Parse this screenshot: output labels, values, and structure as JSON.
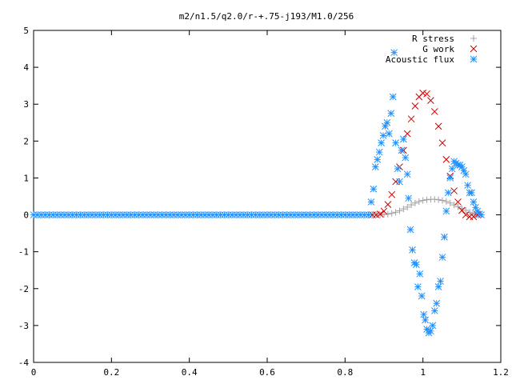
{
  "chart_data": {
    "type": "scatter",
    "title": "m2/n1.5/q2.0/r-+.75-j193/M1.0/256",
    "xlabel": "",
    "ylabel": "",
    "xlim": [
      0,
      1.2
    ],
    "ylim": [
      -4,
      5
    ],
    "xticks": [
      0,
      0.2,
      0.4,
      0.6,
      0.8,
      1,
      1.2
    ],
    "yticks": [
      -4,
      -3,
      -2,
      -1,
      0,
      1,
      2,
      3,
      4,
      5
    ],
    "xtick_labels": [
      "0",
      "0.2",
      "0.4",
      "0.6",
      "0.8",
      "1",
      "1.2"
    ],
    "ytick_labels": [
      "-4",
      "-3",
      "-2",
      "-1",
      "0",
      "1",
      "2",
      "3",
      "4",
      "5"
    ],
    "grid": false,
    "legend_position": "top-right",
    "series": [
      {
        "name": "R stress",
        "marker": "plus",
        "color": "#a0a0a0",
        "points": [
          [
            0.87,
            0.0
          ],
          [
            0.88,
            0.0
          ],
          [
            0.89,
            0.0
          ],
          [
            0.9,
            0.01
          ],
          [
            0.91,
            0.02
          ],
          [
            0.92,
            0.04
          ],
          [
            0.93,
            0.07
          ],
          [
            0.94,
            0.11
          ],
          [
            0.95,
            0.16
          ],
          [
            0.96,
            0.21
          ],
          [
            0.97,
            0.27
          ],
          [
            0.98,
            0.32
          ],
          [
            0.99,
            0.36
          ],
          [
            1.0,
            0.39
          ],
          [
            1.01,
            0.41
          ],
          [
            1.02,
            0.42
          ],
          [
            1.03,
            0.42
          ],
          [
            1.04,
            0.41
          ],
          [
            1.05,
            0.39
          ],
          [
            1.06,
            0.36
          ],
          [
            1.07,
            0.32
          ],
          [
            1.08,
            0.27
          ],
          [
            1.09,
            0.22
          ],
          [
            1.1,
            0.17
          ],
          [
            1.11,
            0.12
          ],
          [
            1.12,
            0.07
          ],
          [
            1.13,
            0.03
          ],
          [
            1.14,
            0.01
          ]
        ]
      },
      {
        "name": "G work",
        "marker": "cross",
        "color": "#cc0000",
        "points": [
          [
            0.87,
            0.0
          ],
          [
            0.88,
            0.0
          ],
          [
            0.89,
            0.02
          ],
          [
            0.9,
            0.1
          ],
          [
            0.91,
            0.28
          ],
          [
            0.92,
            0.55
          ],
          [
            0.93,
            0.9
          ],
          [
            0.94,
            1.3
          ],
          [
            0.95,
            1.75
          ],
          [
            0.96,
            2.2
          ],
          [
            0.97,
            2.6
          ],
          [
            0.98,
            2.95
          ],
          [
            0.99,
            3.2
          ],
          [
            1.0,
            3.3
          ],
          [
            1.01,
            3.28
          ],
          [
            1.02,
            3.1
          ],
          [
            1.03,
            2.8
          ],
          [
            1.04,
            2.4
          ],
          [
            1.05,
            1.95
          ],
          [
            1.06,
            1.5
          ],
          [
            1.07,
            1.05
          ],
          [
            1.08,
            0.65
          ],
          [
            1.09,
            0.35
          ],
          [
            1.1,
            0.12
          ],
          [
            1.11,
            0.0
          ],
          [
            1.12,
            -0.05
          ],
          [
            1.13,
            -0.05
          ],
          [
            1.14,
            0.0
          ]
        ]
      },
      {
        "name": "Acoustic flux",
        "marker": "star",
        "color": "#1e90ff",
        "points": [
          [
            0.0,
            0.0
          ],
          [
            0.01,
            0.0
          ],
          [
            0.02,
            0.0
          ],
          [
            0.03,
            0.0
          ],
          [
            0.04,
            0.0
          ],
          [
            0.05,
            0.0
          ],
          [
            0.06,
            0.0
          ],
          [
            0.07,
            0.0
          ],
          [
            0.08,
            0.0
          ],
          [
            0.09,
            0.0
          ],
          [
            0.1,
            0.0
          ],
          [
            0.11,
            0.0
          ],
          [
            0.12,
            0.0
          ],
          [
            0.13,
            0.0
          ],
          [
            0.14,
            0.0
          ],
          [
            0.15,
            0.0
          ],
          [
            0.16,
            0.0
          ],
          [
            0.17,
            0.0
          ],
          [
            0.18,
            0.0
          ],
          [
            0.19,
            0.0
          ],
          [
            0.2,
            0.0
          ],
          [
            0.21,
            0.0
          ],
          [
            0.22,
            0.0
          ],
          [
            0.23,
            0.0
          ],
          [
            0.24,
            0.0
          ],
          [
            0.25,
            0.0
          ],
          [
            0.26,
            0.0
          ],
          [
            0.27,
            0.0
          ],
          [
            0.28,
            0.0
          ],
          [
            0.29,
            0.0
          ],
          [
            0.3,
            0.0
          ],
          [
            0.31,
            0.0
          ],
          [
            0.32,
            0.0
          ],
          [
            0.33,
            0.0
          ],
          [
            0.34,
            0.0
          ],
          [
            0.35,
            0.0
          ],
          [
            0.36,
            0.0
          ],
          [
            0.37,
            0.0
          ],
          [
            0.38,
            0.0
          ],
          [
            0.39,
            0.0
          ],
          [
            0.4,
            0.0
          ],
          [
            0.41,
            0.0
          ],
          [
            0.42,
            0.0
          ],
          [
            0.43,
            0.0
          ],
          [
            0.44,
            0.0
          ],
          [
            0.45,
            0.0
          ],
          [
            0.46,
            0.0
          ],
          [
            0.47,
            0.0
          ],
          [
            0.48,
            0.0
          ],
          [
            0.49,
            0.0
          ],
          [
            0.5,
            0.0
          ],
          [
            0.51,
            0.0
          ],
          [
            0.52,
            0.0
          ],
          [
            0.53,
            0.0
          ],
          [
            0.54,
            0.0
          ],
          [
            0.55,
            0.0
          ],
          [
            0.56,
            0.0
          ],
          [
            0.57,
            0.0
          ],
          [
            0.58,
            0.0
          ],
          [
            0.59,
            0.0
          ],
          [
            0.6,
            0.0
          ],
          [
            0.61,
            0.0
          ],
          [
            0.62,
            0.0
          ],
          [
            0.63,
            0.0
          ],
          [
            0.64,
            0.0
          ],
          [
            0.65,
            0.0
          ],
          [
            0.66,
            0.0
          ],
          [
            0.67,
            0.0
          ],
          [
            0.68,
            0.0
          ],
          [
            0.69,
            0.0
          ],
          [
            0.7,
            0.0
          ],
          [
            0.71,
            0.0
          ],
          [
            0.72,
            0.0
          ],
          [
            0.73,
            0.0
          ],
          [
            0.74,
            0.0
          ],
          [
            0.75,
            0.0
          ],
          [
            0.76,
            0.0
          ],
          [
            0.77,
            0.0
          ],
          [
            0.78,
            0.0
          ],
          [
            0.79,
            0.0
          ],
          [
            0.8,
            0.0
          ],
          [
            0.81,
            0.0
          ],
          [
            0.82,
            0.0
          ],
          [
            0.83,
            0.0
          ],
          [
            0.84,
            0.0
          ],
          [
            0.85,
            0.0
          ],
          [
            0.86,
            0.0
          ],
          [
            0.867,
            0.35
          ],
          [
            0.873,
            0.7
          ],
          [
            0.878,
            1.3
          ],
          [
            0.883,
            1.5
          ],
          [
            0.888,
            1.7
          ],
          [
            0.893,
            1.95
          ],
          [
            0.898,
            2.15
          ],
          [
            0.903,
            2.4
          ],
          [
            0.908,
            2.5
          ],
          [
            0.913,
            2.2
          ],
          [
            0.918,
            2.75
          ],
          [
            0.923,
            3.2
          ],
          [
            0.926,
            4.4
          ],
          [
            0.93,
            1.95
          ],
          [
            0.935,
            1.25
          ],
          [
            0.94,
            0.9
          ],
          [
            0.945,
            1.75
          ],
          [
            0.95,
            2.05
          ],
          [
            0.955,
            1.55
          ],
          [
            0.96,
            1.1
          ],
          [
            0.963,
            0.45
          ],
          [
            0.968,
            -0.4
          ],
          [
            0.973,
            -0.95
          ],
          [
            0.978,
            -1.3
          ],
          [
            0.983,
            -1.35
          ],
          [
            0.987,
            -1.95
          ],
          [
            0.992,
            -1.6
          ],
          [
            0.997,
            -2.2
          ],
          [
            1.002,
            -2.7
          ],
          [
            1.006,
            -2.85
          ],
          [
            1.01,
            -3.1
          ],
          [
            1.015,
            -3.2
          ],
          [
            1.02,
            -3.15
          ],
          [
            1.025,
            -3.0
          ],
          [
            1.03,
            -2.6
          ],
          [
            1.035,
            -2.4
          ],
          [
            1.04,
            -1.95
          ],
          [
            1.045,
            -1.8
          ],
          [
            1.05,
            -1.15
          ],
          [
            1.055,
            -0.6
          ],
          [
            1.06,
            0.1
          ],
          [
            1.065,
            0.6
          ],
          [
            1.07,
            1.0
          ],
          [
            1.075,
            1.25
          ],
          [
            1.08,
            1.45
          ],
          [
            1.085,
            1.4
          ],
          [
            1.09,
            1.35
          ],
          [
            1.095,
            1.35
          ],
          [
            1.1,
            1.3
          ],
          [
            1.105,
            1.2
          ],
          [
            1.11,
            1.1
          ],
          [
            1.115,
            0.8
          ],
          [
            1.12,
            0.6
          ],
          [
            1.125,
            0.6
          ],
          [
            1.13,
            0.35
          ],
          [
            1.135,
            0.2
          ],
          [
            1.14,
            0.1
          ],
          [
            1.145,
            0.02
          ],
          [
            1.15,
            0.0
          ]
        ]
      }
    ]
  }
}
